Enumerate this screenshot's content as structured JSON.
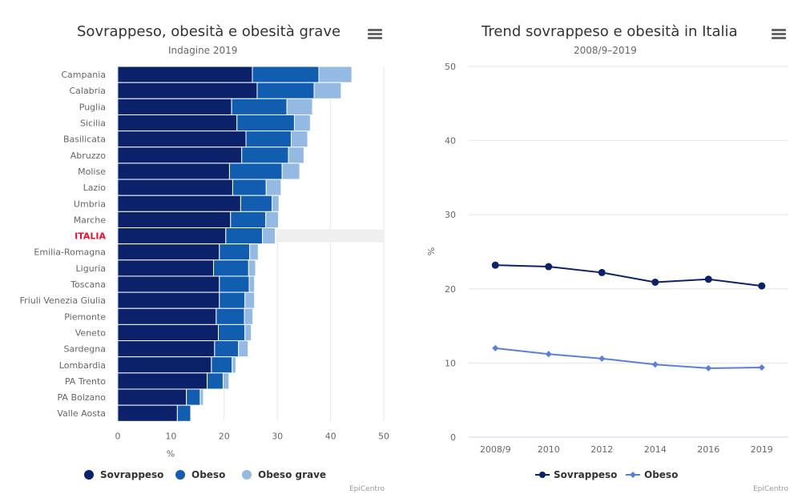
{
  "left_chart": {
    "title": "Sovrappeso, obesità e obesità grave",
    "subtitle": "Indagine 2019",
    "credits": "EpiCentro",
    "menu_icon": "hamburger-menu-icon",
    "legend": [
      {
        "label": "Sovrappeso",
        "color": "#0b226b"
      },
      {
        "label": "Obeso",
        "color": "#115db0"
      },
      {
        "label": "Obeso grave",
        "color": "#94b9e2"
      }
    ]
  },
  "right_chart": {
    "title": "Trend sovrappeso e obesità in Italia",
    "subtitle": "2008/9–2019",
    "credits": "EpiCentro",
    "menu_icon": "hamburger-menu-icon",
    "legend": [
      {
        "label": "Sovrappeso",
        "color": "#0b226b",
        "marker": "circle"
      },
      {
        "label": "Obeso",
        "color": "#5b7fd6",
        "marker": "diamond"
      }
    ]
  },
  "chart_data": [
    {
      "type": "bar",
      "orientation": "horizontal",
      "stacked": true,
      "title": "Sovrappeso, obesità e obesità grave",
      "subtitle": "Indagine 2019",
      "xlabel": "%",
      "ylabel": "",
      "xlim": [
        0,
        50
      ],
      "xticks": [
        0,
        10,
        20,
        30,
        40,
        50
      ],
      "grid": true,
      "legend_position": "bottom",
      "highlight_category": "ITALIA",
      "highlight_color": "#e8112d",
      "categories": [
        "Campania",
        "Calabria",
        "Puglia",
        "Sicilia",
        "Basilicata",
        "Abruzzo",
        "Molise",
        "Lazio",
        "Umbria",
        "Marche",
        "ITALIA",
        "Emilia-Romagna",
        "Liguria",
        "Toscana",
        "Friuli Venezia Giulia",
        "Piemonte",
        "Veneto",
        "Sardegna",
        "Lombardia",
        "PA Trento",
        "PA Bolzano",
        "Valle Aosta"
      ],
      "series": [
        {
          "name": "Sovrappeso",
          "color": "#0b226b",
          "values": [
            25.3,
            26.2,
            21.4,
            22.4,
            24.1,
            23.3,
            21.0,
            21.6,
            23.1,
            21.2,
            20.3,
            19.1,
            18.0,
            19.1,
            19.1,
            18.5,
            18.9,
            18.2,
            17.6,
            16.8,
            12.9,
            11.2
          ]
        },
        {
          "name": "Obeso",
          "color": "#115db0",
          "values": [
            12.5,
            10.7,
            10.4,
            10.8,
            8.5,
            8.8,
            9.9,
            6.3,
            5.9,
            6.6,
            6.9,
            5.7,
            6.6,
            5.6,
            4.8,
            5.3,
            5.0,
            4.5,
            3.9,
            3.0,
            2.6,
            2.5
          ]
        },
        {
          "name": "Obeso grave",
          "color": "#94b9e2",
          "values": [
            6.2,
            5.1,
            4.8,
            3.0,
            3.1,
            2.9,
            3.3,
            2.8,
            1.3,
            2.4,
            2.4,
            1.6,
            1.3,
            1.0,
            1.8,
            1.6,
            1.2,
            1.8,
            0.7,
            1.1,
            0.6,
            0.0
          ]
        }
      ]
    },
    {
      "type": "line",
      "title": "Trend sovrappeso e obesità in Italia",
      "subtitle": "2008/9–2019",
      "xlabel": "",
      "ylabel": "%",
      "ylim": [
        0,
        50
      ],
      "yticks": [
        0,
        10,
        20,
        30,
        40,
        50
      ],
      "grid": true,
      "legend_position": "bottom",
      "categories": [
        "2008/9",
        "2010",
        "2012",
        "2014",
        "2016",
        "2019"
      ],
      "series": [
        {
          "name": "Sovrappeso",
          "color": "#0b226b",
          "marker": "circle",
          "values": [
            23.2,
            23.0,
            22.2,
            20.9,
            21.3,
            20.4
          ]
        },
        {
          "name": "Obeso",
          "color": "#5b7fd6",
          "marker": "diamond",
          "values": [
            12.0,
            11.2,
            10.6,
            9.8,
            9.3,
            9.4
          ]
        }
      ]
    }
  ]
}
